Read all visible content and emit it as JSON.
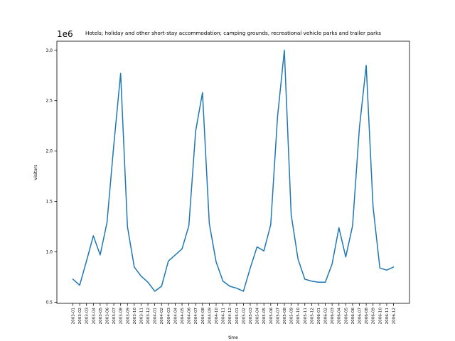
{
  "chart_data": {
    "type": "line",
    "title": "Hotels; holiday and other short-stay accommodation; camping grounds, recreational vehicle parks and trailer parks",
    "xlabel": "time",
    "ylabel": "visitors",
    "offset_label": "1e6",
    "y_unit_multiplier": 1000000,
    "ylim": [
      0.49,
      3.09
    ],
    "yticks": [
      0.5,
      1.0,
      1.5,
      2.0,
      2.5,
      3.0
    ],
    "ytick_labels": [
      "0.5",
      "1.0",
      "1.5",
      "2.0",
      "2.5",
      "3.0"
    ],
    "grid": false,
    "legend": "none",
    "line_color": "#1f77b4",
    "categories": [
      "2003-01",
      "2003-02",
      "2003-03",
      "2003-04",
      "2003-05",
      "2003-06",
      "2003-07",
      "2003-08",
      "2003-09",
      "2003-10",
      "2003-11",
      "2003-12",
      "2004-01",
      "2004-02",
      "2004-03",
      "2004-04",
      "2004-05",
      "2004-06",
      "2004-07",
      "2004-08",
      "2004-09",
      "2004-10",
      "2004-11",
      "2004-12",
      "2005-01",
      "2005-02",
      "2005-03",
      "2005-04",
      "2005-05",
      "2005-06",
      "2005-07",
      "2005-08",
      "2005-09",
      "2005-10",
      "2005-11",
      "2005-12",
      "2006-01",
      "2006-02",
      "2006-03",
      "2006-04",
      "2006-05",
      "2006-06",
      "2006-07",
      "2006-08",
      "2006-09",
      "2006-10",
      "2006-11",
      "2006-12"
    ],
    "series": [
      {
        "values": [
          0.73,
          0.67,
          0.91,
          1.16,
          0.97,
          1.29,
          2.06,
          2.77,
          1.25,
          0.85,
          0.76,
          0.7,
          0.61,
          0.66,
          0.91,
          0.97,
          1.03,
          1.26,
          2.2,
          2.58,
          1.28,
          0.9,
          0.71,
          0.66,
          0.64,
          0.61,
          0.84,
          1.05,
          1.01,
          1.27,
          2.34,
          3.0,
          1.37,
          0.93,
          0.73,
          0.71,
          0.7,
          0.7,
          0.88,
          1.24,
          0.95,
          1.26,
          2.23,
          2.85,
          1.45,
          0.84,
          0.82,
          0.85
        ]
      }
    ]
  }
}
